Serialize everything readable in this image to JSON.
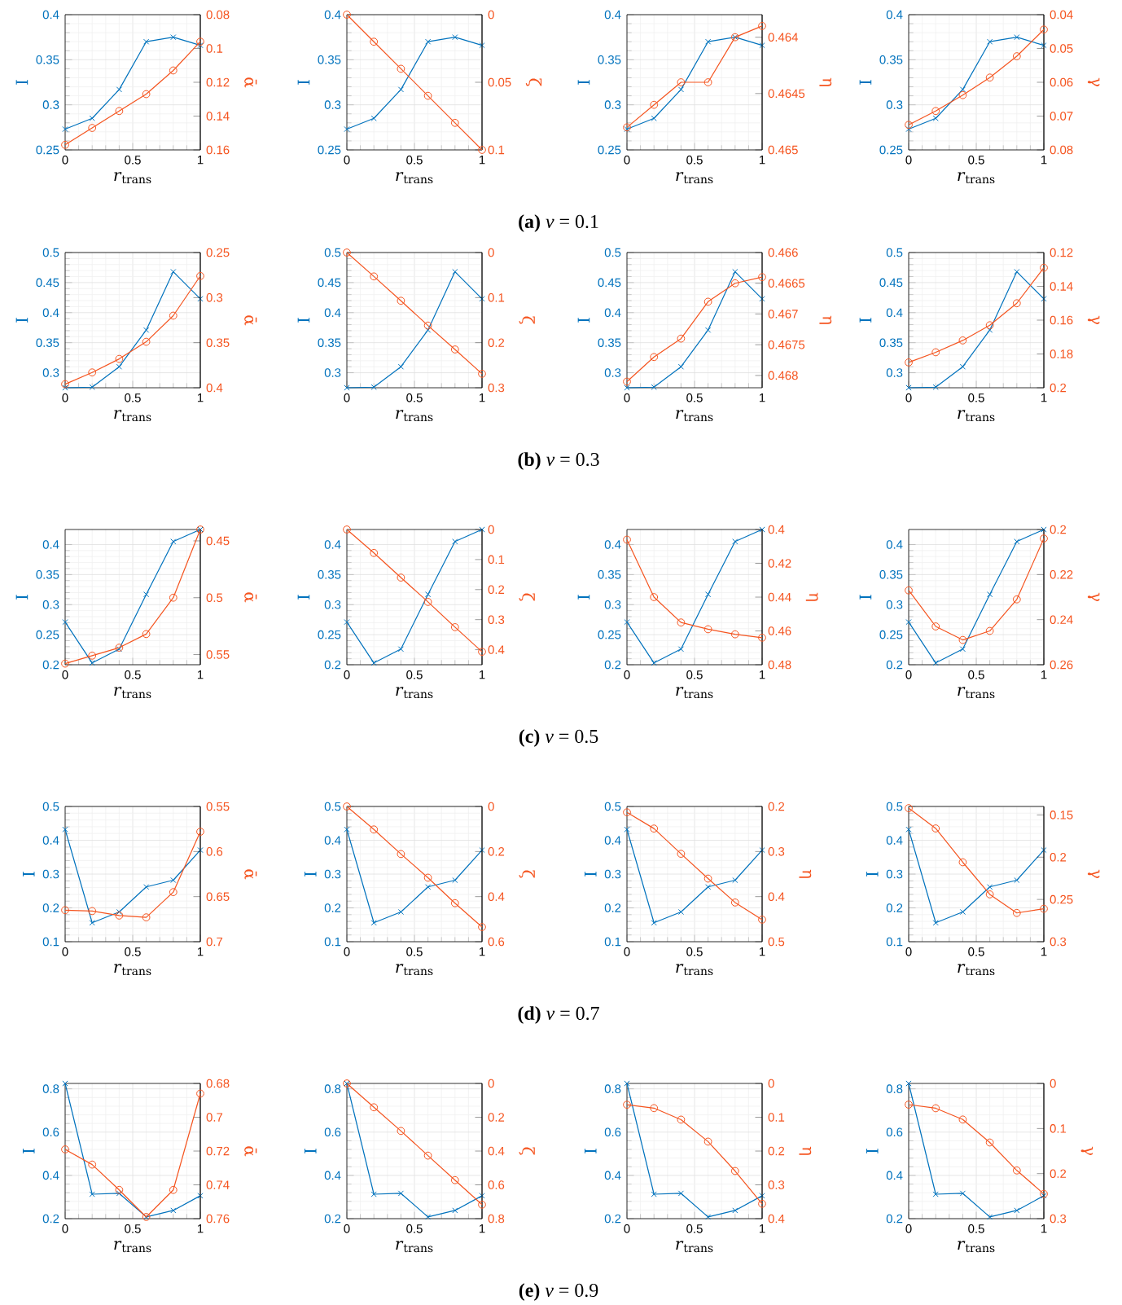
{
  "chart_data": [
    {
      "type": "line",
      "x": [
        0,
        0.2,
        0.4,
        0.6,
        0.8,
        1
      ],
      "xlim": [
        0,
        1
      ],
      "xticks": [
        0,
        0.5,
        1
      ],
      "ylim": [
        0.25,
        0.4
      ],
      "yticks": [
        0.25,
        0.3,
        0.35,
        0.4
      ],
      "y2lim": [
        0.16,
        0.08
      ],
      "y2ticks": [
        0.08,
        0.1,
        0.12,
        0.14,
        0.16
      ],
      "xlabel": "*r*$_{trans}$",
      "ylabel": "I",
      "y2label": "ᾱ",
      "grid": true,
      "series": [
        {
          "color": "#0072bd",
          "marker": "cross",
          "values": [
            0.273,
            0.285,
            0.317,
            0.37,
            0.375,
            0.366
          ]
        },
        {
          "axis": "y2",
          "color": "#f5541f",
          "marker": "circle",
          "values": [
            0.157,
            0.147,
            0.137,
            0.127,
            0.113,
            0.096
          ]
        }
      ]
    },
    {
      "type": "line",
      "x": [
        0,
        0.2,
        0.4,
        0.6,
        0.8,
        1
      ],
      "xlim": [
        0,
        1
      ],
      "xticks": [
        0,
        0.5,
        1
      ],
      "ylim": [
        0.25,
        0.4
      ],
      "yticks": [
        0.25,
        0.3,
        0.35,
        0.4
      ],
      "y2lim": [
        0.1,
        0
      ],
      "y2ticks": [
        0,
        0.05,
        0.1
      ],
      "xlabel": "*r*$_{trans}$",
      "ylabel": "I",
      "y2label": "ζ",
      "grid": true,
      "annotations": [
        "**(a)** *ν* = 0.1"
      ],
      "series": [
        {
          "color": "#0072bd",
          "marker": "cross",
          "values": [
            0.273,
            0.285,
            0.317,
            0.37,
            0.375,
            0.366
          ]
        },
        {
          "axis": "y2",
          "color": "#f5541f",
          "marker": "circle",
          "values": [
            0,
            0.02,
            0.04,
            0.06,
            0.08,
            0.1
          ]
        }
      ]
    },
    {
      "type": "line",
      "x": [
        0,
        0.2,
        0.4,
        0.6,
        0.8,
        1
      ],
      "xlim": [
        0,
        1
      ],
      "xticks": [
        0,
        0.5,
        1
      ],
      "ylim": [
        0.25,
        0.4
      ],
      "yticks": [
        0.25,
        0.3,
        0.35,
        0.4
      ],
      "y2lim": [
        0.465,
        0.4638
      ],
      "y2ticks": [
        0.464,
        0.4645,
        0.465
      ],
      "xlabel": "*r*$_{trans}$",
      "ylabel": "I",
      "y2label": "η",
      "grid": true,
      "series": [
        {
          "color": "#0072bd",
          "marker": "cross",
          "values": [
            0.273,
            0.285,
            0.317,
            0.37,
            0.375,
            0.366
          ]
        },
        {
          "axis": "y2",
          "color": "#f5541f",
          "marker": "circle",
          "values": [
            0.4648,
            0.4646,
            0.4644,
            0.4644,
            0.464,
            0.4639
          ]
        }
      ]
    },
    {
      "type": "line",
      "x": [
        0,
        0.2,
        0.4,
        0.6,
        0.8,
        1
      ],
      "xlim": [
        0,
        1
      ],
      "xticks": [
        0,
        0.5,
        1
      ],
      "ylim": [
        0.25,
        0.4
      ],
      "yticks": [
        0.25,
        0.3,
        0.35,
        0.4
      ],
      "y2lim": [
        0.08,
        0.04
      ],
      "y2ticks": [
        0.04,
        0.05,
        0.06,
        0.07,
        0.08
      ],
      "xlabel": "*r*$_{trans}$",
      "ylabel": "I",
      "y2label": "γ",
      "grid": true,
      "series": [
        {
          "color": "#0072bd",
          "marker": "cross",
          "values": [
            0.273,
            0.285,
            0.317,
            0.37,
            0.375,
            0.366
          ]
        },
        {
          "axis": "y2",
          "color": "#f5541f",
          "marker": "circle",
          "values": [
            0.0726,
            0.0685,
            0.0638,
            0.0586,
            0.0523,
            0.0444
          ]
        }
      ]
    },
    {
      "type": "line",
      "x": [
        0,
        0.2,
        0.4,
        0.6,
        0.8,
        1
      ],
      "xlim": [
        0,
        1
      ],
      "xticks": [
        0,
        0.5,
        1
      ],
      "ylim": [
        0.275,
        0.5
      ],
      "yticks": [
        0.3,
        0.35,
        0.4,
        0.45,
        0.5
      ],
      "y2lim": [
        0.4,
        0.25
      ],
      "y2ticks": [
        0.25,
        0.3,
        0.35,
        0.4
      ],
      "xlabel": "*r*$_{trans}$",
      "ylabel": "I",
      "y2label": "ᾱ",
      "grid": true,
      "series": [
        {
          "color": "#0072bd",
          "marker": "cross",
          "values": [
            0.275,
            0.276,
            0.31,
            0.371,
            0.468,
            0.423
          ]
        },
        {
          "axis": "y2",
          "color": "#f5541f",
          "marker": "circle",
          "values": [
            0.396,
            0.383,
            0.368,
            0.349,
            0.32,
            0.276
          ]
        }
      ]
    },
    {
      "type": "line",
      "x": [
        0,
        0.2,
        0.4,
        0.6,
        0.8,
        1
      ],
      "xlim": [
        0,
        1
      ],
      "xticks": [
        0,
        0.5,
        1
      ],
      "ylim": [
        0.275,
        0.5
      ],
      "yticks": [
        0.3,
        0.35,
        0.4,
        0.45,
        0.5
      ],
      "y2lim": [
        0.3,
        0
      ],
      "y2ticks": [
        0,
        0.1,
        0.2,
        0.3
      ],
      "xlabel": "*r*$_{trans}$",
      "ylabel": "I",
      "y2label": "ζ",
      "grid": true,
      "annotations": [
        "**(b)** *ν* = 0.3"
      ],
      "series": [
        {
          "color": "#0072bd",
          "marker": "cross",
          "values": [
            0.275,
            0.276,
            0.31,
            0.371,
            0.468,
            0.423
          ]
        },
        {
          "axis": "y2",
          "color": "#f5541f",
          "marker": "circle",
          "values": [
            0,
            0.053,
            0.107,
            0.162,
            0.215,
            0.269
          ]
        }
      ]
    },
    {
      "type": "line",
      "x": [
        0,
        0.2,
        0.4,
        0.6,
        0.8,
        1
      ],
      "xlim": [
        0,
        1
      ],
      "xticks": [
        0,
        0.5,
        1
      ],
      "ylim": [
        0.275,
        0.5
      ],
      "yticks": [
        0.3,
        0.35,
        0.4,
        0.45,
        0.5
      ],
      "y2lim": [
        0.4682,
        0.466
      ],
      "y2ticks": [
        0.466,
        0.4665,
        0.467,
        0.4675,
        0.468
      ],
      "xlabel": "*r*$_{trans}$",
      "ylabel": "I",
      "y2label": "η",
      "grid": true,
      "series": [
        {
          "color": "#0072bd",
          "marker": "cross",
          "values": [
            0.275,
            0.276,
            0.31,
            0.371,
            0.468,
            0.423
          ]
        },
        {
          "axis": "y2",
          "color": "#f5541f",
          "marker": "circle",
          "values": [
            0.4681,
            0.4677,
            0.4674,
            0.4668,
            0.4665,
            0.4664
          ]
        }
      ]
    },
    {
      "type": "line",
      "x": [
        0,
        0.2,
        0.4,
        0.6,
        0.8,
        1
      ],
      "xlim": [
        0,
        1
      ],
      "xticks": [
        0,
        0.5,
        1
      ],
      "ylim": [
        0.275,
        0.5
      ],
      "yticks": [
        0.3,
        0.35,
        0.4,
        0.45,
        0.5
      ],
      "y2lim": [
        0.2,
        0.12
      ],
      "y2ticks": [
        0.12,
        0.14,
        0.16,
        0.18,
        0.2
      ],
      "xlabel": "*r*$_{trans}$",
      "ylabel": "I",
      "y2label": "γ",
      "grid": true,
      "series": [
        {
          "color": "#0072bd",
          "marker": "cross",
          "values": [
            0.275,
            0.276,
            0.31,
            0.371,
            0.468,
            0.423
          ]
        },
        {
          "axis": "y2",
          "color": "#f5541f",
          "marker": "circle",
          "values": [
            0.185,
            0.179,
            0.172,
            0.163,
            0.15,
            0.129
          ]
        }
      ]
    },
    {
      "type": "line",
      "x": [
        0,
        0.2,
        0.4,
        0.6,
        0.8,
        1
      ],
      "xlim": [
        0,
        1
      ],
      "xticks": [
        0,
        0.5,
        1
      ],
      "ylim": [
        0.2,
        0.425
      ],
      "yticks": [
        0.2,
        0.25,
        0.3,
        0.35,
        0.4
      ],
      "y2lim": [
        0.559,
        0.44
      ],
      "y2ticks": [
        0.45,
        0.5,
        0.55
      ],
      "xlabel": "*r*$_{trans}$",
      "ylabel": "I",
      "y2label": "ᾱ",
      "grid": true,
      "series": [
        {
          "color": "#0072bd",
          "marker": "cross",
          "values": [
            0.271,
            0.203,
            0.226,
            0.317,
            0.405,
            0.425
          ]
        },
        {
          "axis": "y2",
          "color": "#f5541f",
          "marker": "circle",
          "values": [
            0.558,
            0.551,
            0.544,
            0.532,
            0.5,
            0.44
          ]
        }
      ]
    },
    {
      "type": "line",
      "x": [
        0,
        0.2,
        0.4,
        0.6,
        0.8,
        1
      ],
      "xlim": [
        0,
        1
      ],
      "xticks": [
        0,
        0.5,
        1
      ],
      "ylim": [
        0.2,
        0.425
      ],
      "yticks": [
        0.2,
        0.25,
        0.3,
        0.35,
        0.4
      ],
      "y2lim": [
        0.45,
        0
      ],
      "y2ticks": [
        0,
        0.1,
        0.2,
        0.3,
        0.4
      ],
      "xlabel": "*r*$_{trans}$",
      "ylabel": "I",
      "y2label": "ζ",
      "grid": true,
      "annotations": [
        "**(c)** *ν* = 0.5"
      ],
      "series": [
        {
          "color": "#0072bd",
          "marker": "cross",
          "values": [
            0.271,
            0.203,
            0.226,
            0.317,
            0.405,
            0.425
          ]
        },
        {
          "axis": "y2",
          "color": "#f5541f",
          "marker": "circle",
          "values": [
            0,
            0.078,
            0.16,
            0.241,
            0.325,
            0.407
          ]
        }
      ]
    },
    {
      "type": "line",
      "x": [
        0,
        0.2,
        0.4,
        0.6,
        0.8,
        1
      ],
      "xlim": [
        0,
        1
      ],
      "xticks": [
        0,
        0.5,
        1
      ],
      "ylim": [
        0.2,
        0.425
      ],
      "yticks": [
        0.2,
        0.25,
        0.3,
        0.35,
        0.4
      ],
      "y2lim": [
        0.48,
        0.4
      ],
      "y2ticks": [
        0.4,
        0.42,
        0.44,
        0.46,
        0.48
      ],
      "xlabel": "*r*$_{trans}$",
      "ylabel": "I",
      "y2label": "η",
      "grid": true,
      "series": [
        {
          "color": "#0072bd",
          "marker": "cross",
          "values": [
            0.271,
            0.203,
            0.226,
            0.317,
            0.405,
            0.425
          ]
        },
        {
          "axis": "y2",
          "color": "#f5541f",
          "marker": "circle",
          "values": [
            0.406,
            0.44,
            0.455,
            0.459,
            0.462,
            0.464
          ]
        }
      ]
    },
    {
      "type": "line",
      "x": [
        0,
        0.2,
        0.4,
        0.6,
        0.8,
        1
      ],
      "xlim": [
        0,
        1
      ],
      "xticks": [
        0,
        0.5,
        1
      ],
      "ylim": [
        0.2,
        0.425
      ],
      "yticks": [
        0.2,
        0.25,
        0.3,
        0.35,
        0.4
      ],
      "y2lim": [
        0.26,
        0.2
      ],
      "y2ticks": [
        0.2,
        0.22,
        0.24,
        0.26
      ],
      "xlabel": "*r*$_{trans}$",
      "ylabel": "I",
      "y2label": "γ",
      "grid": true,
      "series": [
        {
          "color": "#0072bd",
          "marker": "cross",
          "values": [
            0.271,
            0.203,
            0.226,
            0.317,
            0.405,
            0.425
          ]
        },
        {
          "axis": "y2",
          "color": "#f5541f",
          "marker": "circle",
          "values": [
            0.227,
            0.243,
            0.249,
            0.245,
            0.231,
            0.204
          ]
        }
      ]
    },
    {
      "type": "line",
      "x": [
        0,
        0.2,
        0.4,
        0.6,
        0.8,
        1
      ],
      "xlim": [
        0,
        1
      ],
      "xticks": [
        0,
        0.5,
        1
      ],
      "ylim": [
        0.1,
        0.5
      ],
      "yticks": [
        0.1,
        0.2,
        0.3,
        0.4,
        0.5
      ],
      "y2lim": [
        0.7,
        0.55
      ],
      "y2ticks": [
        0.55,
        0.6,
        0.65,
        0.7
      ],
      "xlabel": "*r*$_{trans}$",
      "ylabel": "I",
      "y2label": "ᾱ",
      "grid": true,
      "series": [
        {
          "color": "#0072bd",
          "marker": "cross",
          "values": [
            0.432,
            0.156,
            0.188,
            0.262,
            0.282,
            0.371
          ]
        },
        {
          "axis": "y2",
          "color": "#f5541f",
          "marker": "circle",
          "values": [
            0.665,
            0.666,
            0.671,
            0.673,
            0.645,
            0.578
          ]
        }
      ]
    },
    {
      "type": "line",
      "x": [
        0,
        0.2,
        0.4,
        0.6,
        0.8,
        1
      ],
      "xlim": [
        0,
        1
      ],
      "xticks": [
        0,
        0.5,
        1
      ],
      "ylim": [
        0.1,
        0.5
      ],
      "yticks": [
        0.1,
        0.2,
        0.3,
        0.4,
        0.5
      ],
      "y2lim": [
        0.6,
        0
      ],
      "y2ticks": [
        0,
        0.2,
        0.4,
        0.6
      ],
      "xlabel": "*r*$_{trans}$",
      "ylabel": "I",
      "y2label": "ζ",
      "grid": true,
      "annotations": [
        "**(d)** *ν* = 0.7"
      ],
      "series": [
        {
          "color": "#0072bd",
          "marker": "cross",
          "values": [
            0.432,
            0.156,
            0.188,
            0.262,
            0.282,
            0.371
          ]
        },
        {
          "axis": "y2",
          "color": "#f5541f",
          "marker": "circle",
          "values": [
            0,
            0.102,
            0.211,
            0.316,
            0.429,
            0.535
          ]
        }
      ]
    },
    {
      "type": "line",
      "x": [
        0,
        0.2,
        0.4,
        0.6,
        0.8,
        1
      ],
      "xlim": [
        0,
        1
      ],
      "xticks": [
        0,
        0.5,
        1
      ],
      "ylim": [
        0.1,
        0.5
      ],
      "yticks": [
        0.1,
        0.2,
        0.3,
        0.4,
        0.5
      ],
      "y2lim": [
        0.5,
        0.2
      ],
      "y2ticks": [
        0.2,
        0.3,
        0.4,
        0.5
      ],
      "xlabel": "*r*$_{trans}$",
      "ylabel": "I",
      "y2label": "η",
      "grid": true,
      "series": [
        {
          "color": "#0072bd",
          "marker": "cross",
          "values": [
            0.432,
            0.156,
            0.188,
            0.262,
            0.282,
            0.371
          ]
        },
        {
          "axis": "y2",
          "color": "#f5541f",
          "marker": "circle",
          "values": [
            0.213,
            0.249,
            0.305,
            0.36,
            0.413,
            0.451
          ]
        }
      ]
    },
    {
      "type": "line",
      "x": [
        0,
        0.2,
        0.4,
        0.6,
        0.8,
        1
      ],
      "xlim": [
        0,
        1
      ],
      "xticks": [
        0,
        0.5,
        1
      ],
      "ylim": [
        0.1,
        0.5
      ],
      "yticks": [
        0.1,
        0.2,
        0.3,
        0.4,
        0.5
      ],
      "y2lim": [
        0.3,
        0.14
      ],
      "y2ticks": [
        0.15,
        0.2,
        0.25,
        0.3
      ],
      "xlabel": "*r*$_{trans}$",
      "ylabel": "I",
      "y2label": "γ",
      "grid": true,
      "series": [
        {
          "color": "#0072bd",
          "marker": "cross",
          "values": [
            0.432,
            0.156,
            0.188,
            0.262,
            0.282,
            0.371
          ]
        },
        {
          "axis": "y2",
          "color": "#f5541f",
          "marker": "circle",
          "values": [
            0.142,
            0.166,
            0.206,
            0.244,
            0.266,
            0.261
          ]
        }
      ]
    },
    {
      "type": "line",
      "x": [
        0,
        0.2,
        0.4,
        0.6,
        0.8,
        1
      ],
      "xlim": [
        0,
        1
      ],
      "xticks": [
        0,
        0.5,
        1
      ],
      "ylim": [
        0.2,
        0.825
      ],
      "yticks": [
        0.2,
        0.4,
        0.6,
        0.8
      ],
      "y2lim": [
        0.76,
        0.68
      ],
      "y2ticks": [
        0.68,
        0.7,
        0.72,
        0.74,
        0.76
      ],
      "xlabel": "*r*$_{trans}$",
      "ylabel": "I",
      "y2label": "ᾱ",
      "grid": true,
      "series": [
        {
          "color": "#0072bd",
          "marker": "cross",
          "values": [
            0.825,
            0.313,
            0.317,
            0.208,
            0.238,
            0.306
          ]
        },
        {
          "axis": "y2",
          "color": "#f5541f",
          "marker": "circle",
          "values": [
            0.719,
            0.728,
            0.743,
            0.759,
            0.743,
            0.686
          ]
        }
      ]
    },
    {
      "type": "line",
      "x": [
        0,
        0.2,
        0.4,
        0.6,
        0.8,
        1
      ],
      "xlim": [
        0,
        1
      ],
      "xticks": [
        0,
        0.5,
        1
      ],
      "ylim": [
        0.2,
        0.825
      ],
      "yticks": [
        0.2,
        0.4,
        0.6,
        0.8
      ],
      "y2lim": [
        0.8,
        0
      ],
      "y2ticks": [
        0,
        0.2,
        0.4,
        0.6,
        0.8
      ],
      "xlabel": "*r*$_{trans}$",
      "ylabel": "I",
      "y2label": "ζ",
      "grid": true,
      "annotations": [
        "**(e)** *ν* = 0.9"
      ],
      "series": [
        {
          "color": "#0072bd",
          "marker": "cross",
          "values": [
            0.825,
            0.313,
            0.317,
            0.208,
            0.238,
            0.306
          ]
        },
        {
          "axis": "y2",
          "color": "#f5541f",
          "marker": "circle",
          "values": [
            0,
            0.141,
            0.281,
            0.427,
            0.572,
            0.717
          ]
        }
      ]
    },
    {
      "type": "line",
      "x": [
        0,
        0.2,
        0.4,
        0.6,
        0.8,
        1
      ],
      "xlim": [
        0,
        1
      ],
      "xticks": [
        0,
        0.5,
        1
      ],
      "ylim": [
        0.2,
        0.825
      ],
      "yticks": [
        0.2,
        0.4,
        0.6,
        0.8
      ],
      "y2lim": [
        0.4,
        0
      ],
      "y2ticks": [
        0,
        0.1,
        0.2,
        0.3,
        0.4
      ],
      "xlabel": "*r*$_{trans}$",
      "ylabel": "I",
      "y2label": "η",
      "grid": true,
      "series": [
        {
          "color": "#0072bd",
          "marker": "cross",
          "values": [
            0.825,
            0.313,
            0.317,
            0.208,
            0.238,
            0.306
          ]
        },
        {
          "axis": "y2",
          "color": "#f5541f",
          "marker": "circle",
          "values": [
            0.063,
            0.073,
            0.107,
            0.172,
            0.259,
            0.356
          ]
        }
      ]
    },
    {
      "type": "line",
      "x": [
        0,
        0.2,
        0.4,
        0.6,
        0.8,
        1
      ],
      "xlim": [
        0,
        1
      ],
      "xticks": [
        0,
        0.5,
        1
      ],
      "ylim": [
        0.2,
        0.825
      ],
      "yticks": [
        0.2,
        0.4,
        0.6,
        0.8
      ],
      "y2lim": [
        0.3,
        0
      ],
      "y2ticks": [
        0,
        0.1,
        0.2,
        0.3
      ],
      "xlabel": "*r*$_{trans}$",
      "ylabel": "I",
      "y2label": "γ",
      "grid": true,
      "series": [
        {
          "color": "#0072bd",
          "marker": "cross",
          "values": [
            0.825,
            0.313,
            0.317,
            0.208,
            0.238,
            0.306
          ]
        },
        {
          "axis": "y2",
          "color": "#f5541f",
          "marker": "circle",
          "values": [
            0.047,
            0.055,
            0.08,
            0.131,
            0.193,
            0.245
          ]
        }
      ]
    }
  ]
}
